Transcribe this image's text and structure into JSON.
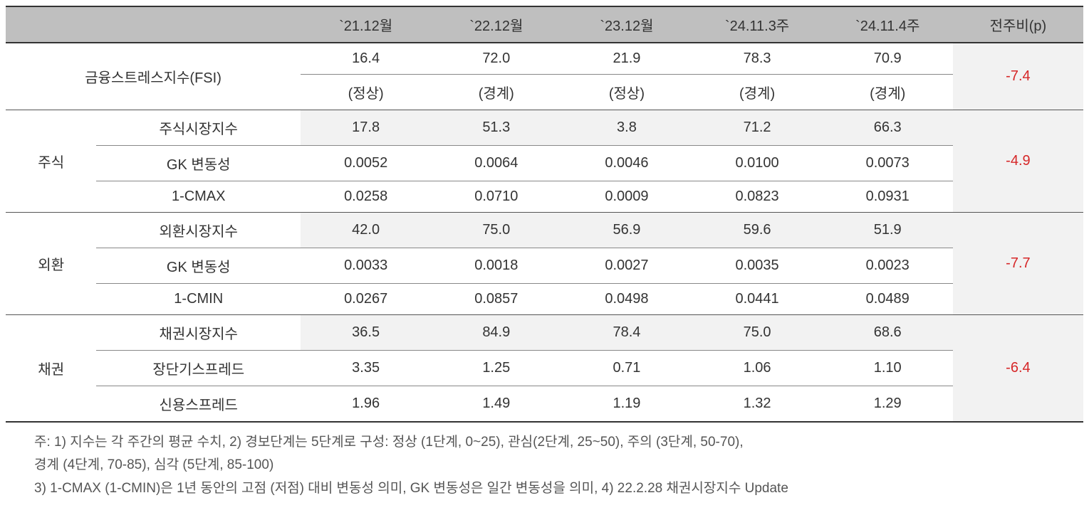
{
  "headers": {
    "p1": "`21.12월",
    "p2": "`22.12월",
    "p3": "`23.12월",
    "p4": "`24.11.3주",
    "p5": "`24.11.4주",
    "change": "전주비(p)"
  },
  "fsi": {
    "label": "금융스트레스지수(FSI)",
    "values": {
      "p1": "16.4",
      "p2": "72.0",
      "p3": "21.9",
      "p4": "78.3",
      "p5": "70.9"
    },
    "status": {
      "p1": "(정상)",
      "p2": "(경계)",
      "p3": "(정상)",
      "p4": "(경계)",
      "p5": "(경계)"
    },
    "change": "-7.4"
  },
  "groups": [
    {
      "category": "주식",
      "change": "-4.9",
      "rows": [
        {
          "label": "주식시장지수",
          "shaded": true,
          "v": [
            "17.8",
            "51.3",
            "3.8",
            "71.2",
            "66.3"
          ]
        },
        {
          "label": "GK 변동성",
          "shaded": false,
          "v": [
            "0.0052",
            "0.0064",
            "0.0046",
            "0.0100",
            "0.0073"
          ]
        },
        {
          "label": "1-CMAX",
          "shaded": false,
          "v": [
            "0.0258",
            "0.0710",
            "0.0009",
            "0.0823",
            "0.0931"
          ]
        }
      ]
    },
    {
      "category": "외환",
      "change": "-7.7",
      "rows": [
        {
          "label": "외환시장지수",
          "shaded": true,
          "v": [
            "42.0",
            "75.0",
            "56.9",
            "59.6",
            "51.9"
          ]
        },
        {
          "label": "GK 변동성",
          "shaded": false,
          "v": [
            "0.0033",
            "0.0018",
            "0.0027",
            "0.0035",
            "0.0023"
          ]
        },
        {
          "label": "1-CMIN",
          "shaded": false,
          "v": [
            "0.0267",
            "0.0857",
            "0.0498",
            "0.0441",
            "0.0489"
          ]
        }
      ]
    },
    {
      "category": "채권",
      "change": "-6.4",
      "rows": [
        {
          "label": "채권시장지수",
          "shaded": true,
          "v": [
            "36.5",
            "84.9",
            "78.4",
            "75.0",
            "68.6"
          ]
        },
        {
          "label": "장단기스프레드",
          "shaded": false,
          "v": [
            "3.35",
            "1.25",
            "0.71",
            "1.06",
            "1.10"
          ]
        },
        {
          "label": "신용스프레드",
          "shaded": false,
          "v": [
            "1.96",
            "1.49",
            "1.19",
            "1.32",
            "1.29"
          ]
        }
      ]
    }
  ],
  "footnotes": {
    "line1": "주: 1) 지수는 각 주간의 평균 수치, 2) 경보단계는 5단계로 구성: 정상 (1단계, 0~25), 관심(2단계, 25~50), 주의 (3단계, 50-70),",
    "line2": "경계 (4단계, 70-85), 심각 (5단계, 85-100)",
    "line3": "3) 1-CMAX (1-CMIN)은 1년 동안의 고점 (저점) 대비 변동성 의미, GK 변동성은 일간 변동성을 의미, 4) 22.2.28 채권시장지수 Update"
  },
  "colors": {
    "header_bg": "#bfbfbf",
    "shaded_bg": "#f2f2f2",
    "negative": "#d62728",
    "text": "#333333",
    "border_thick": "#333333",
    "border_thin": "#888888"
  }
}
